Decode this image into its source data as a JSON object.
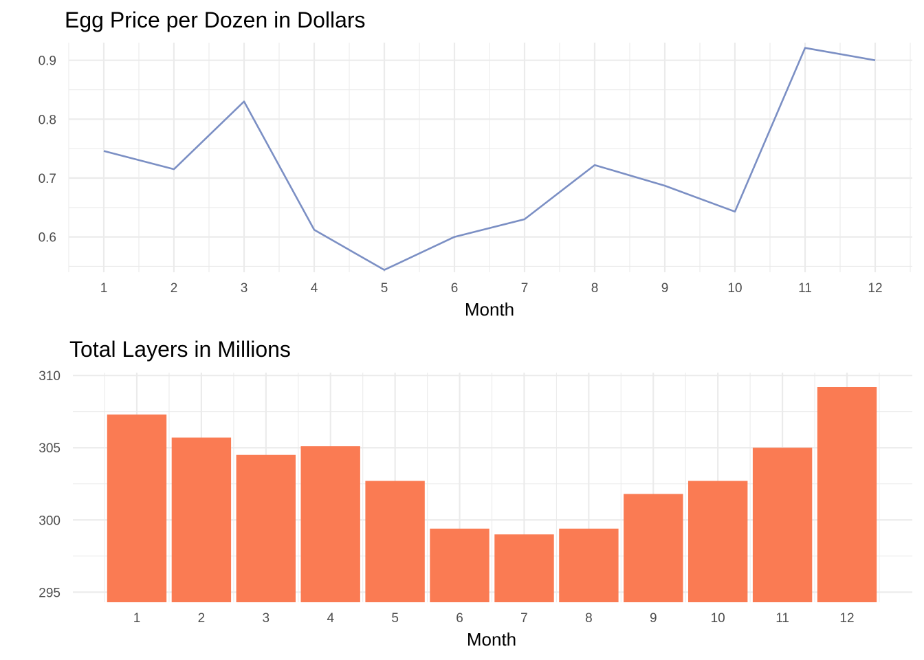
{
  "chart_data": [
    {
      "type": "line",
      "title": "Egg Price per Dozen in Dollars",
      "xlabel": "Month",
      "ylabel": "",
      "x": [
        1,
        2,
        3,
        4,
        5,
        6,
        7,
        8,
        9,
        10,
        11,
        12
      ],
      "x_tick_labels": [
        "1",
        "2",
        "3",
        "4",
        "5",
        "6",
        "7",
        "8",
        "9",
        "10",
        "11",
        "12"
      ],
      "y_ticks": [
        0.6,
        0.7,
        0.8,
        0.9
      ],
      "y_tick_labels": [
        "0.6",
        "0.7",
        "0.8",
        "0.9"
      ],
      "ylim": [
        0.54,
        0.93
      ],
      "grid": true,
      "color": "#7B8FC4",
      "series": [
        {
          "values": [
            0.746,
            0.715,
            0.83,
            0.612,
            0.544,
            0.6,
            0.63,
            0.722,
            0.687,
            0.643,
            0.921,
            0.9
          ]
        }
      ]
    },
    {
      "type": "bar",
      "title": "Total Layers in Millions",
      "xlabel": "Month",
      "ylabel": "",
      "categories": [
        "1",
        "2",
        "3",
        "4",
        "5",
        "6",
        "7",
        "8",
        "9",
        "10",
        "11",
        "12"
      ],
      "y_ticks": [
        295,
        300,
        305,
        310
      ],
      "y_tick_labels": [
        "295",
        "300",
        "305",
        "310"
      ],
      "ylim": [
        294.3,
        310.2
      ],
      "grid": true,
      "color": "#FA7B53",
      "values": [
        307.3,
        305.7,
        304.5,
        305.1,
        302.7,
        299.4,
        299.0,
        299.4,
        301.8,
        302.7,
        305.0,
        309.2
      ]
    }
  ]
}
